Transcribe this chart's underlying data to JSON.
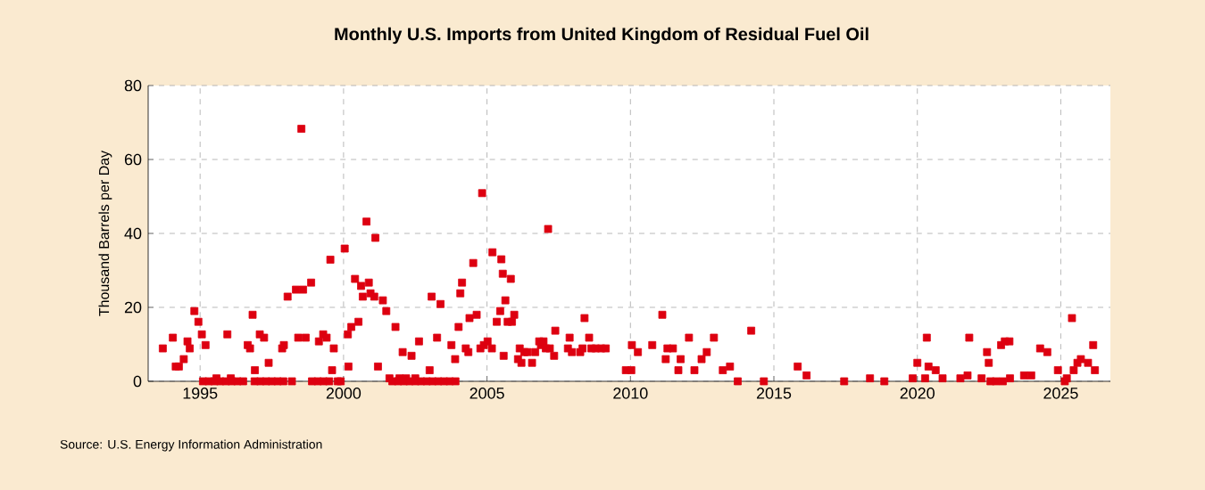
{
  "chart_data": {
    "type": "scatter",
    "title": "Monthly U.S. Imports from United Kingdom of Residual Fuel Oil",
    "ylabel": "Thousand Barrels per Day",
    "annotations": [
      "Source: U.S. Energy Information Administration"
    ],
    "x": [
      1993.7,
      1994.05,
      1994.15,
      1994.26,
      1994.43,
      1994.56,
      1994.64,
      1994.8,
      1994.94,
      1995.06,
      1995.19,
      1995.57,
      1995.95,
      1996.07,
      1996.66,
      1996.74,
      1996.83,
      1996.91,
      1997.08,
      1997.23,
      1997.39,
      1997.86,
      1997.92,
      1998.05,
      1998.34,
      1998.42,
      1998.53,
      1998.59,
      1998.68,
      1998.87,
      1999.14,
      1999.29,
      1999.41,
      1999.54,
      1999.6,
      1999.66,
      2000.04,
      2000.15,
      2000.17,
      2000.27,
      2000.4,
      2000.52,
      2000.61,
      2000.67,
      2000.8,
      2000.88,
      2000.94,
      2001.07,
      2001.11,
      2001.2,
      2001.37,
      2001.49,
      2001.6,
      2001.81,
      2001.95,
      2002.06,
      2002.18,
      2002.37,
      2002.5,
      2002.63,
      2003.0,
      2003.07,
      2003.26,
      2003.38,
      2003.76,
      2003.89,
      2004.01,
      2004.07,
      2004.13,
      2004.26,
      2004.35,
      2004.39,
      2004.52,
      2004.64,
      2004.77,
      2004.83,
      2004.89,
      2005.02,
      2005.17,
      2005.19,
      2005.34,
      2005.46,
      2005.5,
      2005.55,
      2005.58,
      2005.64,
      2005.72,
      2005.83,
      2005.87,
      2005.95,
      2006.08,
      2006.14,
      2006.2,
      2006.3,
      2006.41,
      2006.57,
      2006.68,
      2006.82,
      2006.88,
      2006.97,
      2007.05,
      2007.13,
      2007.19,
      2007.34,
      2007.38,
      2007.82,
      2007.88,
      2007.96,
      2008.25,
      2008.33,
      2008.4,
      2008.56,
      2008.64,
      2008.79,
      2008.98,
      2009.14,
      2009.84,
      2010.03,
      2010.05,
      2010.26,
      2010.76,
      2011.11,
      2011.23,
      2011.29,
      2011.48,
      2011.67,
      2011.75,
      2012.04,
      2012.23,
      2012.48,
      2012.66,
      2012.91,
      2013.22,
      2013.47,
      2013.74,
      2014.21,
      2014.65,
      2015.83,
      2016.14,
      2017.45,
      2018.35,
      2018.85,
      2019.84,
      2020.0,
      2020.27,
      2020.33,
      2020.39,
      2020.64,
      2020.88,
      2021.5,
      2021.75,
      2021.81,
      2022.24,
      2022.43,
      2022.49,
      2022.55,
      2022.74,
      2022.92,
      2022.98,
      2023.05,
      2023.21,
      2023.23,
      2023.72,
      2023.97,
      2024.28,
      2024.53,
      2024.9,
      2025.14,
      2025.21,
      2025.39,
      2025.45,
      2025.58,
      2025.7,
      2025.95,
      2026.13,
      2026.19,
      1995.1,
      1995.3,
      1995.5,
      1995.7,
      1995.9,
      1996.1,
      1996.3,
      1996.5,
      1996.9,
      1997.1,
      1997.3,
      1997.5,
      1997.7,
      1997.9,
      1998.2,
      1998.9,
      1999.1,
      1999.3,
      1999.5,
      1999.8,
      1999.9,
      2001.7,
      2001.9,
      2002.1,
      2002.3,
      2002.5,
      2002.7,
      2002.9,
      2003.1,
      2003.3,
      2003.5,
      2003.7,
      2003.9
    ],
    "values": [
      8.9,
      11.8,
      4.0,
      4.0,
      6.0,
      10.8,
      8.9,
      19.0,
      16.1,
      12.7,
      9.8,
      0.8,
      12.7,
      0.8,
      9.8,
      8.9,
      18.0,
      3.0,
      12.7,
      11.8,
      5.0,
      8.9,
      9.8,
      22.9,
      24.8,
      11.8,
      68.3,
      24.8,
      11.8,
      26.7,
      10.8,
      12.7,
      11.8,
      32.9,
      3.0,
      8.9,
      35.9,
      12.7,
      4.0,
      14.7,
      27.7,
      16.1,
      25.8,
      22.9,
      43.2,
      26.7,
      23.8,
      22.9,
      38.8,
      4.0,
      21.9,
      19.0,
      0.8,
      14.7,
      0.8,
      7.9,
      0.8,
      6.9,
      0.8,
      10.8,
      3.0,
      22.9,
      11.8,
      20.9,
      9.8,
      6.0,
      14.7,
      23.8,
      26.7,
      8.9,
      7.9,
      17.1,
      32.0,
      18.0,
      8.9,
      50.9,
      9.8,
      10.8,
      8.9,
      34.9,
      16.1,
      19.0,
      33.0,
      29.1,
      6.9,
      21.9,
      16.1,
      27.7,
      16.1,
      18.0,
      6.0,
      8.9,
      5.0,
      7.9,
      7.9,
      5.0,
      7.9,
      10.8,
      9.8,
      10.8,
      8.9,
      41.2,
      8.9,
      6.9,
      13.7,
      8.9,
      11.8,
      7.9,
      7.9,
      8.9,
      17.1,
      11.8,
      8.9,
      8.9,
      8.9,
      8.9,
      3.0,
      3.0,
      9.8,
      7.9,
      9.8,
      18.0,
      6.0,
      8.9,
      8.9,
      3.0,
      6.0,
      11.8,
      3.0,
      6.0,
      7.9,
      11.8,
      3.0,
      4.0,
      0,
      13.7,
      0,
      4.0,
      1.6,
      0,
      0.8,
      0,
      0.8,
      5.0,
      0.8,
      11.8,
      4.0,
      3.0,
      0.8,
      0.8,
      1.6,
      11.8,
      0.8,
      7.9,
      5.0,
      0,
      0,
      9.8,
      0,
      10.8,
      10.8,
      0.8,
      1.6,
      1.6,
      8.9,
      7.9,
      3.0,
      0,
      0.8,
      17.1,
      3.0,
      5.0,
      6.0,
      5.0,
      9.8,
      3.0,
      0,
      0,
      0,
      0,
      0,
      0,
      0,
      0,
      0,
      0,
      0,
      0,
      0,
      0,
      0,
      0,
      0,
      0,
      0,
      0,
      0,
      0,
      0,
      0,
      0,
      0,
      0,
      0,
      0,
      0,
      0,
      0,
      0
    ],
    "color": "#dd0010",
    "marker": "square",
    "grid": true,
    "xlim": [
      1993.19,
      2026.73
    ],
    "ylim": [
      0,
      80
    ],
    "xticks": [
      1995,
      2000,
      2005,
      2010,
      2015,
      2020,
      2025
    ],
    "yticks": [
      0,
      20,
      40,
      60,
      80
    ]
  }
}
